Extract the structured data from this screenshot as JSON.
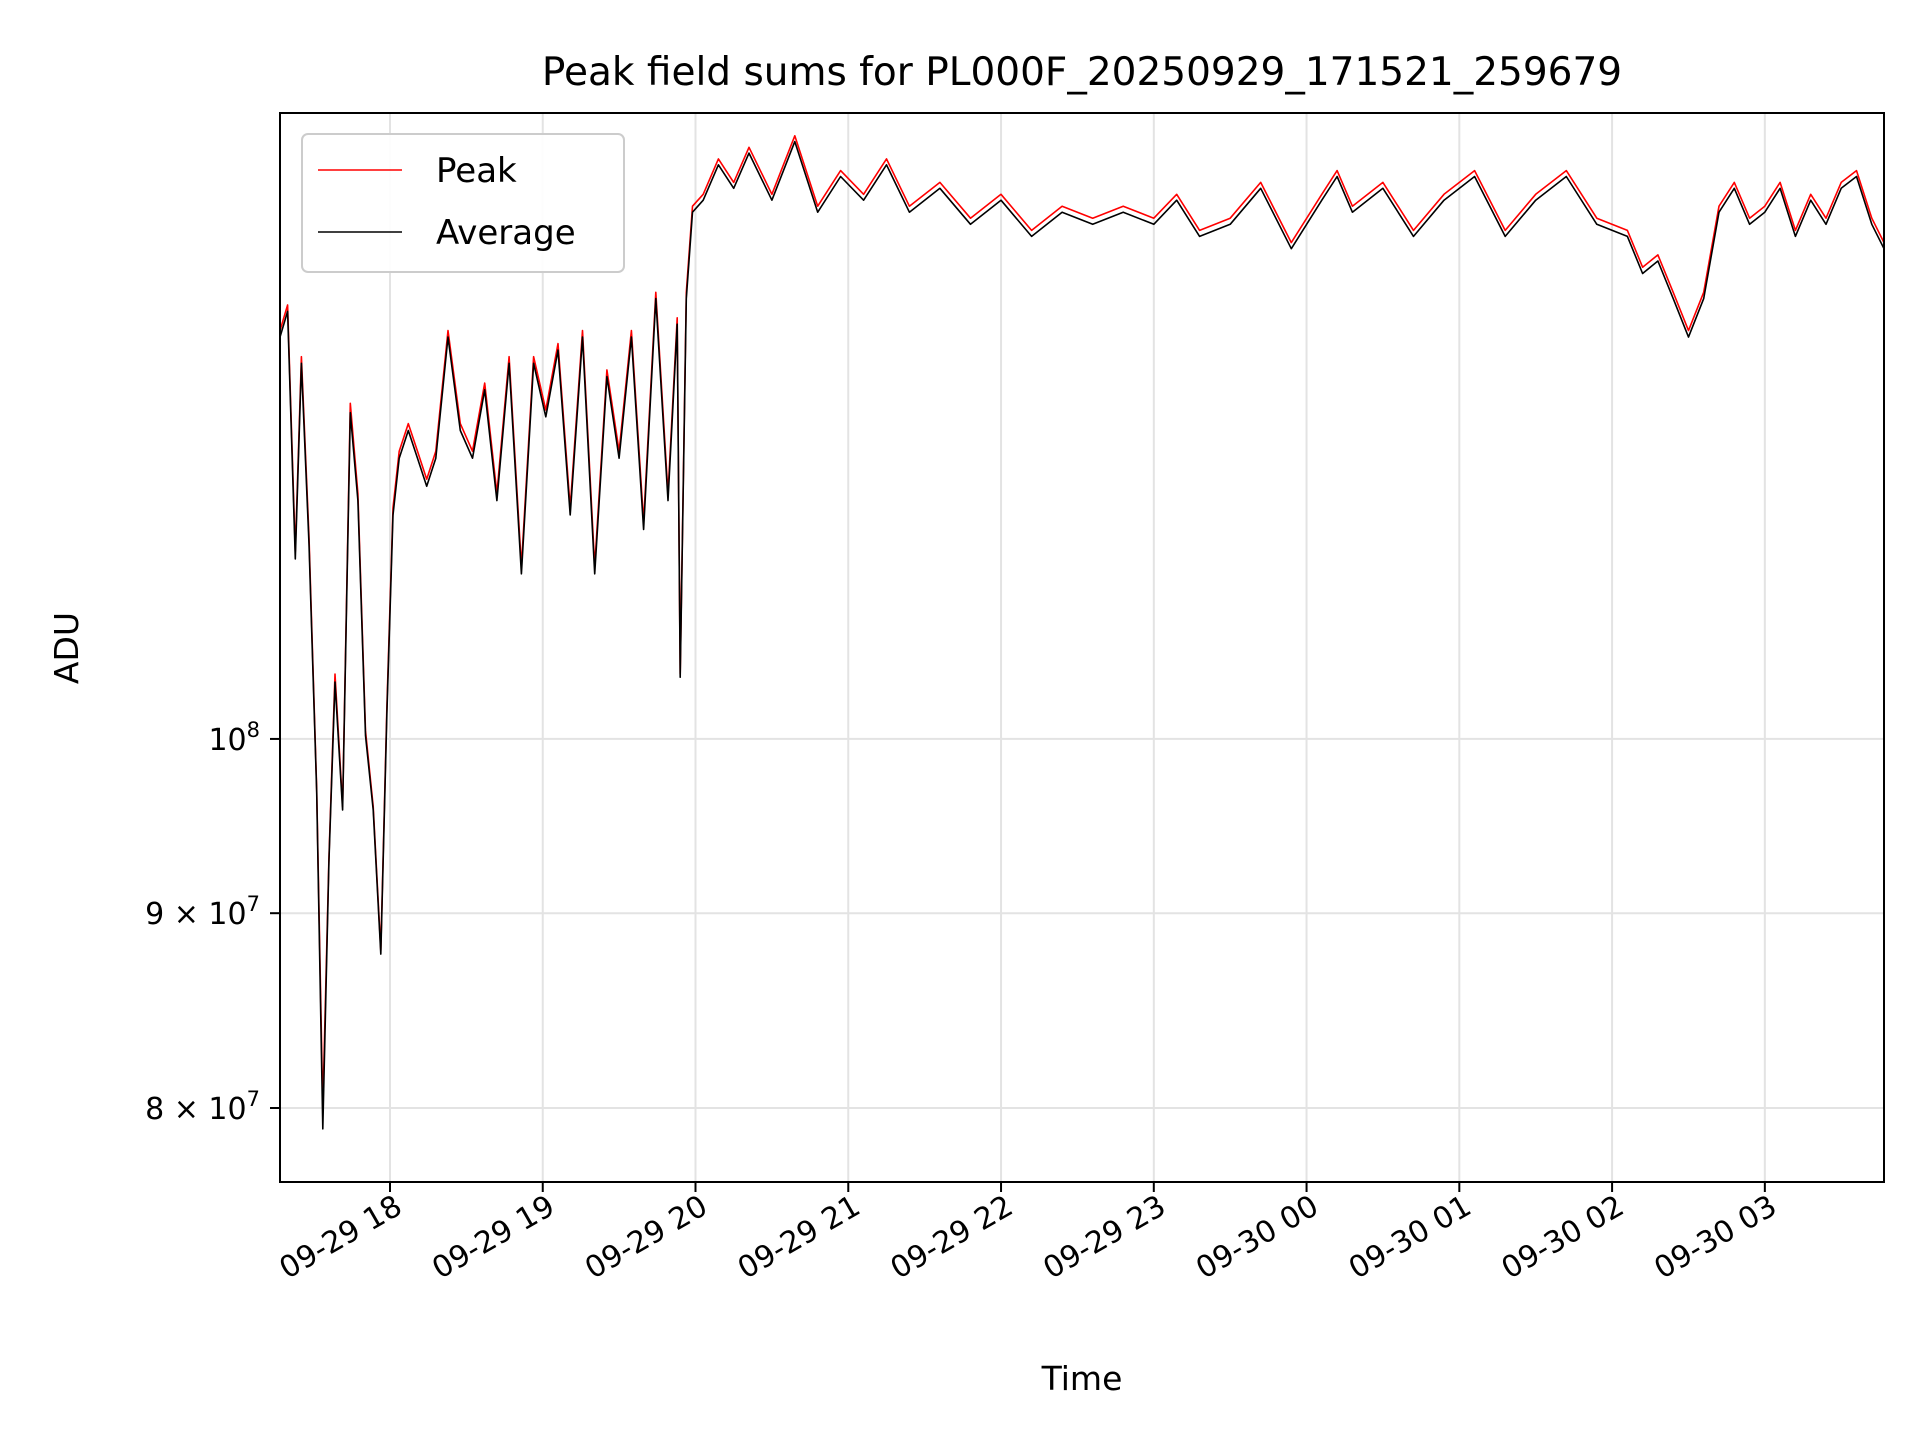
{
  "chart_data": {
    "type": "line",
    "title": "Peak field sums for PL000F_20250929_171521_259679",
    "xlabel": "Time",
    "ylabel": "ADU",
    "yscale": "log",
    "ylim": [
      76500000,
      146000000
    ],
    "xlim_hours": [
      17.28,
      27.78
    ],
    "grid": true,
    "legend_position": "top-left",
    "x_ticks": [
      {
        "hour": 18,
        "label": "09-29 18"
      },
      {
        "hour": 19,
        "label": "09-29 19"
      },
      {
        "hour": 20,
        "label": "09-29 20"
      },
      {
        "hour": 21,
        "label": "09-29 21"
      },
      {
        "hour": 22,
        "label": "09-29 22"
      },
      {
        "hour": 23,
        "label": "09-29 23"
      },
      {
        "hour": 24,
        "label": "09-30 00"
      },
      {
        "hour": 25,
        "label": "09-30 01"
      },
      {
        "hour": 26,
        "label": "09-30 02"
      },
      {
        "hour": 27,
        "label": "09-30 03"
      }
    ],
    "y_ticks": [
      {
        "value": 80000000,
        "mantissa": "8",
        "exp": "7"
      },
      {
        "value": 90000000,
        "mantissa": "9",
        "exp": "7"
      },
      {
        "value": 100000000,
        "mantissa": "",
        "exp": "8"
      }
    ],
    "series": [
      {
        "name": "Peak",
        "color": "#ff0000",
        "x_hours": [
          17.28,
          17.33,
          17.38,
          17.42,
          17.47,
          17.52,
          17.56,
          17.6,
          17.64,
          17.69,
          17.74,
          17.79,
          17.84,
          17.89,
          17.94,
          17.98,
          18.02,
          18.06,
          18.12,
          18.18,
          18.24,
          18.3,
          18.38,
          18.46,
          18.54,
          18.62,
          18.7,
          18.78,
          18.86,
          18.94,
          19.02,
          19.1,
          19.18,
          19.26,
          19.34,
          19.42,
          19.5,
          19.58,
          19.66,
          19.74,
          19.82,
          19.88,
          19.9,
          19.94,
          19.98,
          20.05,
          20.15,
          20.25,
          20.35,
          20.5,
          20.65,
          20.8,
          20.95,
          21.1,
          21.25,
          21.4,
          21.6,
          21.8,
          22.0,
          22.2,
          22.4,
          22.6,
          22.8,
          23.0,
          23.15,
          23.3,
          23.5,
          23.7,
          23.9,
          24.1,
          24.2,
          24.3,
          24.5,
          24.7,
          24.9,
          25.1,
          25.3,
          25.5,
          25.7,
          25.9,
          26.1,
          26.2,
          26.3,
          26.4,
          26.5,
          26.6,
          26.7,
          26.8,
          26.9,
          27.0,
          27.1,
          27.2,
          27.3,
          27.4,
          27.5,
          27.6,
          27.7,
          27.78
        ],
        "values": [
          128000000,
          130000000,
          112000000,
          126000000,
          113000000,
          97000000,
          80000000,
          93000000,
          104000000,
          96000000,
          122500000,
          116000000,
          100500000,
          96000000,
          88000000,
          102000000,
          115000000,
          119000000,
          121000000,
          119000000,
          117000000,
          119000000,
          128000000,
          121000000,
          119000000,
          124000000,
          116000000,
          126000000,
          111000000,
          126000000,
          122000000,
          127000000,
          115000000,
          128000000,
          111000000,
          125000000,
          119000000,
          128000000,
          114000000,
          131000000,
          116000000,
          129000000,
          104000000,
          131000000,
          138000000,
          139000000,
          142000000,
          140000000,
          143000000,
          139000000,
          144000000,
          138000000,
          141000000,
          139000000,
          142000000,
          138000000,
          140000000,
          137000000,
          139000000,
          136000000,
          138000000,
          137000000,
          138000000,
          137000000,
          139000000,
          136000000,
          137000000,
          140000000,
          135000000,
          139000000,
          141000000,
          138000000,
          140000000,
          136000000,
          139000000,
          141000000,
          136000000,
          139000000,
          141000000,
          137000000,
          136000000,
          133000000,
          134000000,
          131000000,
          128000000,
          131000000,
          138000000,
          140000000,
          137000000,
          138000000,
          140000000,
          136000000,
          139000000,
          137000000,
          140000000,
          141000000,
          137000000,
          135000000
        ]
      },
      {
        "name": "Average",
        "color": "#000000",
        "x_hours": [
          17.28,
          17.33,
          17.38,
          17.42,
          17.47,
          17.52,
          17.56,
          17.6,
          17.64,
          17.69,
          17.74,
          17.79,
          17.84,
          17.89,
          17.94,
          17.98,
          18.02,
          18.06,
          18.12,
          18.18,
          18.24,
          18.3,
          18.38,
          18.46,
          18.54,
          18.62,
          18.7,
          18.78,
          18.86,
          18.94,
          19.02,
          19.1,
          19.18,
          19.26,
          19.34,
          19.42,
          19.5,
          19.58,
          19.66,
          19.74,
          19.82,
          19.88,
          19.9,
          19.94,
          19.98,
          20.05,
          20.15,
          20.25,
          20.35,
          20.5,
          20.65,
          20.8,
          20.95,
          21.1,
          21.25,
          21.4,
          21.6,
          21.8,
          22.0,
          22.2,
          22.4,
          22.6,
          22.8,
          23.0,
          23.15,
          23.3,
          23.5,
          23.7,
          23.9,
          24.1,
          24.2,
          24.3,
          24.5,
          24.7,
          24.9,
          25.1,
          25.3,
          25.5,
          25.7,
          25.9,
          26.1,
          26.2,
          26.3,
          26.4,
          26.5,
          26.6,
          26.7,
          26.8,
          26.9,
          27.0,
          27.1,
          27.2,
          27.3,
          27.4,
          27.5,
          27.6,
          27.7,
          27.78
        ],
        "values": [
          127500000,
          129500000,
          111500000,
          125500000,
          112500000,
          96800000,
          79000000,
          92800000,
          103500000,
          95800000,
          121800000,
          115500000,
          100200000,
          95800000,
          87800000,
          101600000,
          114500000,
          118500000,
          120500000,
          118500000,
          116500000,
          118500000,
          127500000,
          120500000,
          118500000,
          123500000,
          115500000,
          125500000,
          110500000,
          125500000,
          121500000,
          126500000,
          114500000,
          127500000,
          110500000,
          124500000,
          118500000,
          127500000,
          113500000,
          130500000,
          115500000,
          128500000,
          103800000,
          130500000,
          137500000,
          138500000,
          141500000,
          139500000,
          142500000,
          138500000,
          143500000,
          137500000,
          140500000,
          138500000,
          141500000,
          137500000,
          139500000,
          136500000,
          138500000,
          135500000,
          137500000,
          136500000,
          137500000,
          136500000,
          138500000,
          135500000,
          136500000,
          139500000,
          134500000,
          138500000,
          140500000,
          137500000,
          139500000,
          135500000,
          138500000,
          140500000,
          135500000,
          138500000,
          140500000,
          136500000,
          135500000,
          132500000,
          133500000,
          130500000,
          127500000,
          130500000,
          137500000,
          139500000,
          136500000,
          137500000,
          139500000,
          135500000,
          138500000,
          136500000,
          139500000,
          140500000,
          136500000,
          134500000
        ]
      }
    ]
  }
}
